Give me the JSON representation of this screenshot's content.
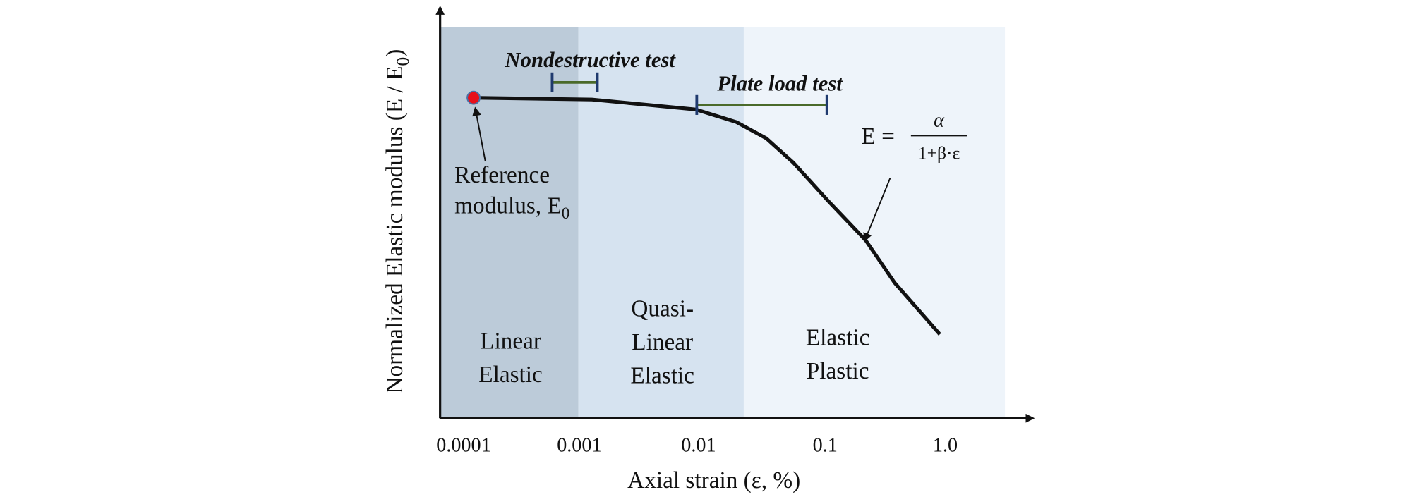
{
  "y_axis_label": {
    "text": "Normalized Elastic modulus (E / E",
    "subscript": "0",
    "close": ")"
  },
  "x_axis_label": "Axial strain (ε, %)",
  "x_ticks": [
    "0.0001",
    "0.001",
    "0.01",
    "0.1",
    "1.0"
  ],
  "regions": [
    {
      "lines": [
        "Linear",
        "Elastic"
      ]
    },
    {
      "lines": [
        "Quasi-",
        "Linear",
        "Elastic"
      ]
    },
    {
      "lines": [
        "Elastic",
        "Plastic"
      ]
    }
  ],
  "tests": [
    "Nondestructive test",
    "Plate load test"
  ],
  "reference": {
    "line1": "Reference",
    "line2": "modulus, E",
    "subscript": "0"
  },
  "formula": {
    "lhs": "E =",
    "numerator": "α",
    "denominator": "1+β·ε"
  }
}
